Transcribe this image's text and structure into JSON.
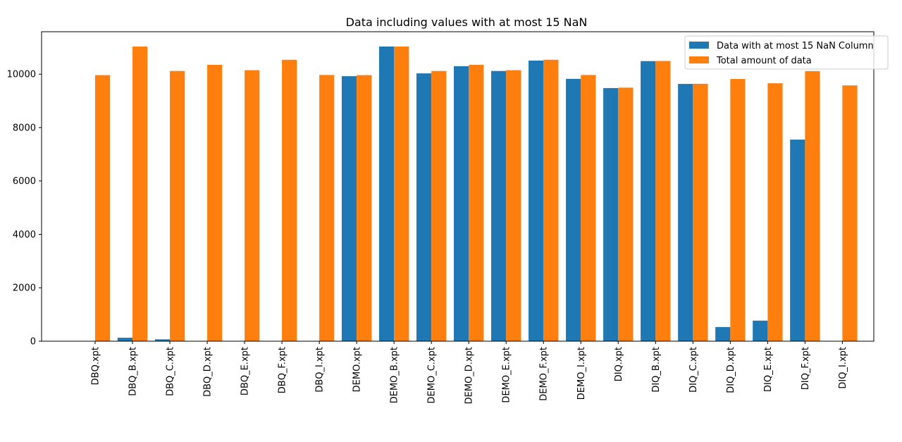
{
  "chart_data": {
    "type": "bar",
    "title": "Data including values with at most 15 NaN",
    "xlabel": "",
    "ylabel": "",
    "categories": [
      "DBQ.xpt",
      "DBQ_B.xpt",
      "DBQ_C.xpt",
      "DBQ_D.xpt",
      "DBQ_E.xpt",
      "DBQ_F.xpt",
      "DBQ_I.xpt",
      "DEMO.xpt",
      "DEMO_B.xpt",
      "DEMO_C.xpt",
      "DEMO_D.xpt",
      "DEMO_E.xpt",
      "DEMO_F.xpt",
      "DEMO_I.xpt",
      "DIQ.xpt",
      "DIQ_B.xpt",
      "DIQ_C.xpt",
      "DIQ_D.xpt",
      "DIQ_E.xpt",
      "DIQ_F.xpt",
      "DIQ_I.xpt"
    ],
    "series": [
      {
        "name": "Data with at most 15 NaN Column",
        "color": "#1f77b4",
        "values": [
          0,
          130,
          70,
          0,
          0,
          0,
          0,
          9925,
          11035,
          10030,
          10300,
          10120,
          10510,
          9825,
          9480,
          10490,
          9635,
          530,
          770,
          7550,
          0
        ]
      },
      {
        "name": "Total amount of data",
        "color": "#ff7f0e",
        "values": [
          9965,
          11035,
          10120,
          10350,
          10150,
          10540,
          9970,
          9965,
          11035,
          10120,
          10350,
          10150,
          10540,
          9970,
          9495,
          10495,
          9640,
          9820,
          9660,
          10115,
          9580
        ]
      }
    ],
    "ylim": [
      0,
      11590
    ],
    "yticks": [
      0,
      2000,
      4000,
      6000,
      8000,
      10000
    ],
    "grid": false,
    "legend_position": "top-right"
  }
}
